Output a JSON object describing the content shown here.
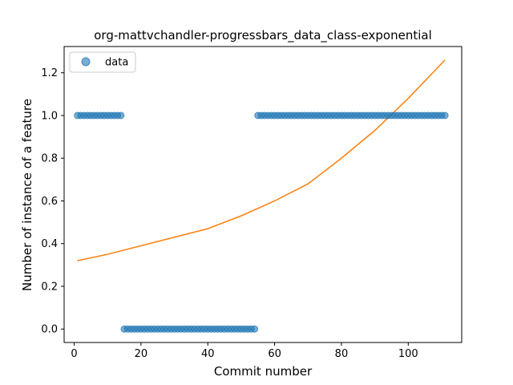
{
  "chart_data": {
    "type": "scatter",
    "title": "org-mattvchandler-progressbars_data_class-exponential",
    "xlabel": "Commit number",
    "ylabel": "Number of instance of a feature",
    "xlim": [
      -3,
      116
    ],
    "ylim": [
      -0.063,
      1.323
    ],
    "xticks": [
      0,
      20,
      40,
      60,
      80,
      100
    ],
    "yticks": [
      0.0,
      0.2,
      0.4,
      0.6,
      0.8,
      1.0,
      1.2
    ],
    "ytick_labels": [
      "0.0",
      "0.2",
      "0.4",
      "0.6",
      "0.8",
      "1.0",
      "1.2"
    ],
    "grid": false,
    "legend": {
      "position": "top-left",
      "entries": [
        "data"
      ]
    },
    "colors": {
      "data": "#1f77b4",
      "fit": "#ff7f0e"
    },
    "series": [
      {
        "name": "data",
        "kind": "scatter",
        "x": [
          1,
          2,
          3,
          4,
          5,
          6,
          7,
          8,
          9,
          10,
          11,
          12,
          13,
          14,
          15,
          16,
          17,
          18,
          19,
          20,
          21,
          22,
          23,
          24,
          25,
          26,
          27,
          28,
          29,
          30,
          31,
          32,
          33,
          34,
          35,
          36,
          37,
          38,
          39,
          40,
          41,
          42,
          43,
          44,
          45,
          46,
          47,
          48,
          49,
          50,
          51,
          52,
          53,
          54,
          55,
          56,
          57,
          58,
          59,
          60,
          61,
          62,
          63,
          64,
          65,
          66,
          67,
          68,
          69,
          70,
          71,
          72,
          73,
          74,
          75,
          76,
          77,
          78,
          79,
          80,
          81,
          82,
          83,
          84,
          85,
          86,
          87,
          88,
          89,
          90,
          91,
          92,
          93,
          94,
          95,
          96,
          97,
          98,
          99,
          100,
          101,
          102,
          103,
          104,
          105,
          106,
          107,
          108,
          109,
          110,
          111
        ],
        "y": [
          1,
          1,
          1,
          1,
          1,
          1,
          1,
          1,
          1,
          1,
          1,
          1,
          1,
          1,
          0,
          0,
          0,
          0,
          0,
          0,
          0,
          0,
          0,
          0,
          0,
          0,
          0,
          0,
          0,
          0,
          0,
          0,
          0,
          0,
          0,
          0,
          0,
          0,
          0,
          0,
          0,
          0,
          0,
          0,
          0,
          0,
          0,
          0,
          0,
          0,
          0,
          0,
          0,
          0,
          1,
          1,
          1,
          1,
          1,
          1,
          1,
          1,
          1,
          1,
          1,
          1,
          1,
          1,
          1,
          1,
          1,
          1,
          1,
          1,
          1,
          1,
          1,
          1,
          1,
          1,
          1,
          1,
          1,
          1,
          1,
          1,
          1,
          1,
          1,
          1,
          1,
          1,
          1,
          1,
          1,
          1,
          1,
          1,
          1,
          1,
          1,
          1,
          1,
          1,
          1,
          1,
          1,
          1,
          1,
          1,
          1
        ]
      },
      {
        "kind": "line",
        "model": "exponential",
        "x": [
          1,
          10,
          20,
          30,
          40,
          50,
          60,
          70,
          80,
          90,
          100,
          111
        ],
        "y": [
          0.32,
          0.35,
          0.39,
          0.43,
          0.47,
          0.53,
          0.6,
          0.68,
          0.8,
          0.93,
          1.08,
          1.26
        ]
      }
    ]
  }
}
